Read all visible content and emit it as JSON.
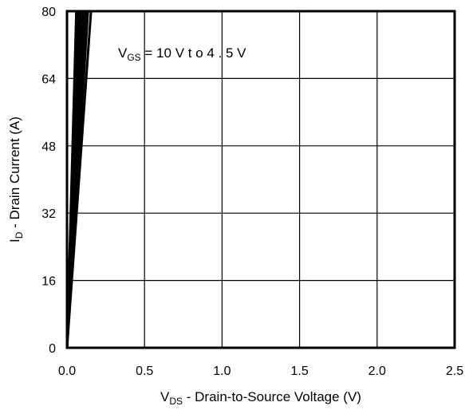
{
  "chart_data": {
    "type": "line",
    "xlabel": {
      "main": "V",
      "sub": "DS",
      "rest": " - Drain-to-Source Voltage (V)"
    },
    "ylabel": {
      "main": "I",
      "sub": "D",
      "rest": " - Drain Current (A)"
    },
    "xlim": [
      0,
      2.5
    ],
    "ylim": [
      0,
      80
    ],
    "xticks": [
      "0.0",
      "0.5",
      "1.0",
      "1.5",
      "2.0",
      "2.5"
    ],
    "xtick_values": [
      0,
      0.5,
      1.0,
      1.5,
      2.0,
      2.5
    ],
    "yticks": [
      "0",
      "16",
      "32",
      "48",
      "64",
      "80"
    ],
    "ytick_values": [
      0,
      16,
      32,
      48,
      64,
      80
    ],
    "grid": true,
    "annotation": {
      "main": "V",
      "sub": "GS",
      "rest": " = 10 V t o 4 . 5 V"
    },
    "series": [
      {
        "x": [
          0,
          0.06
        ],
        "y": [
          0,
          80
        ]
      },
      {
        "x": [
          0,
          0.075
        ],
        "y": [
          0,
          80
        ]
      },
      {
        "x": [
          0,
          0.09
        ],
        "y": [
          0,
          80
        ]
      },
      {
        "x": [
          0,
          0.105
        ],
        "y": [
          0,
          80
        ]
      },
      {
        "x": [
          0,
          0.12
        ],
        "y": [
          0,
          80
        ]
      },
      {
        "x": [
          0,
          0.135
        ],
        "y": [
          0,
          80
        ]
      },
      {
        "x": [
          0,
          0.155
        ],
        "y": [
          0,
          80
        ]
      }
    ]
  }
}
